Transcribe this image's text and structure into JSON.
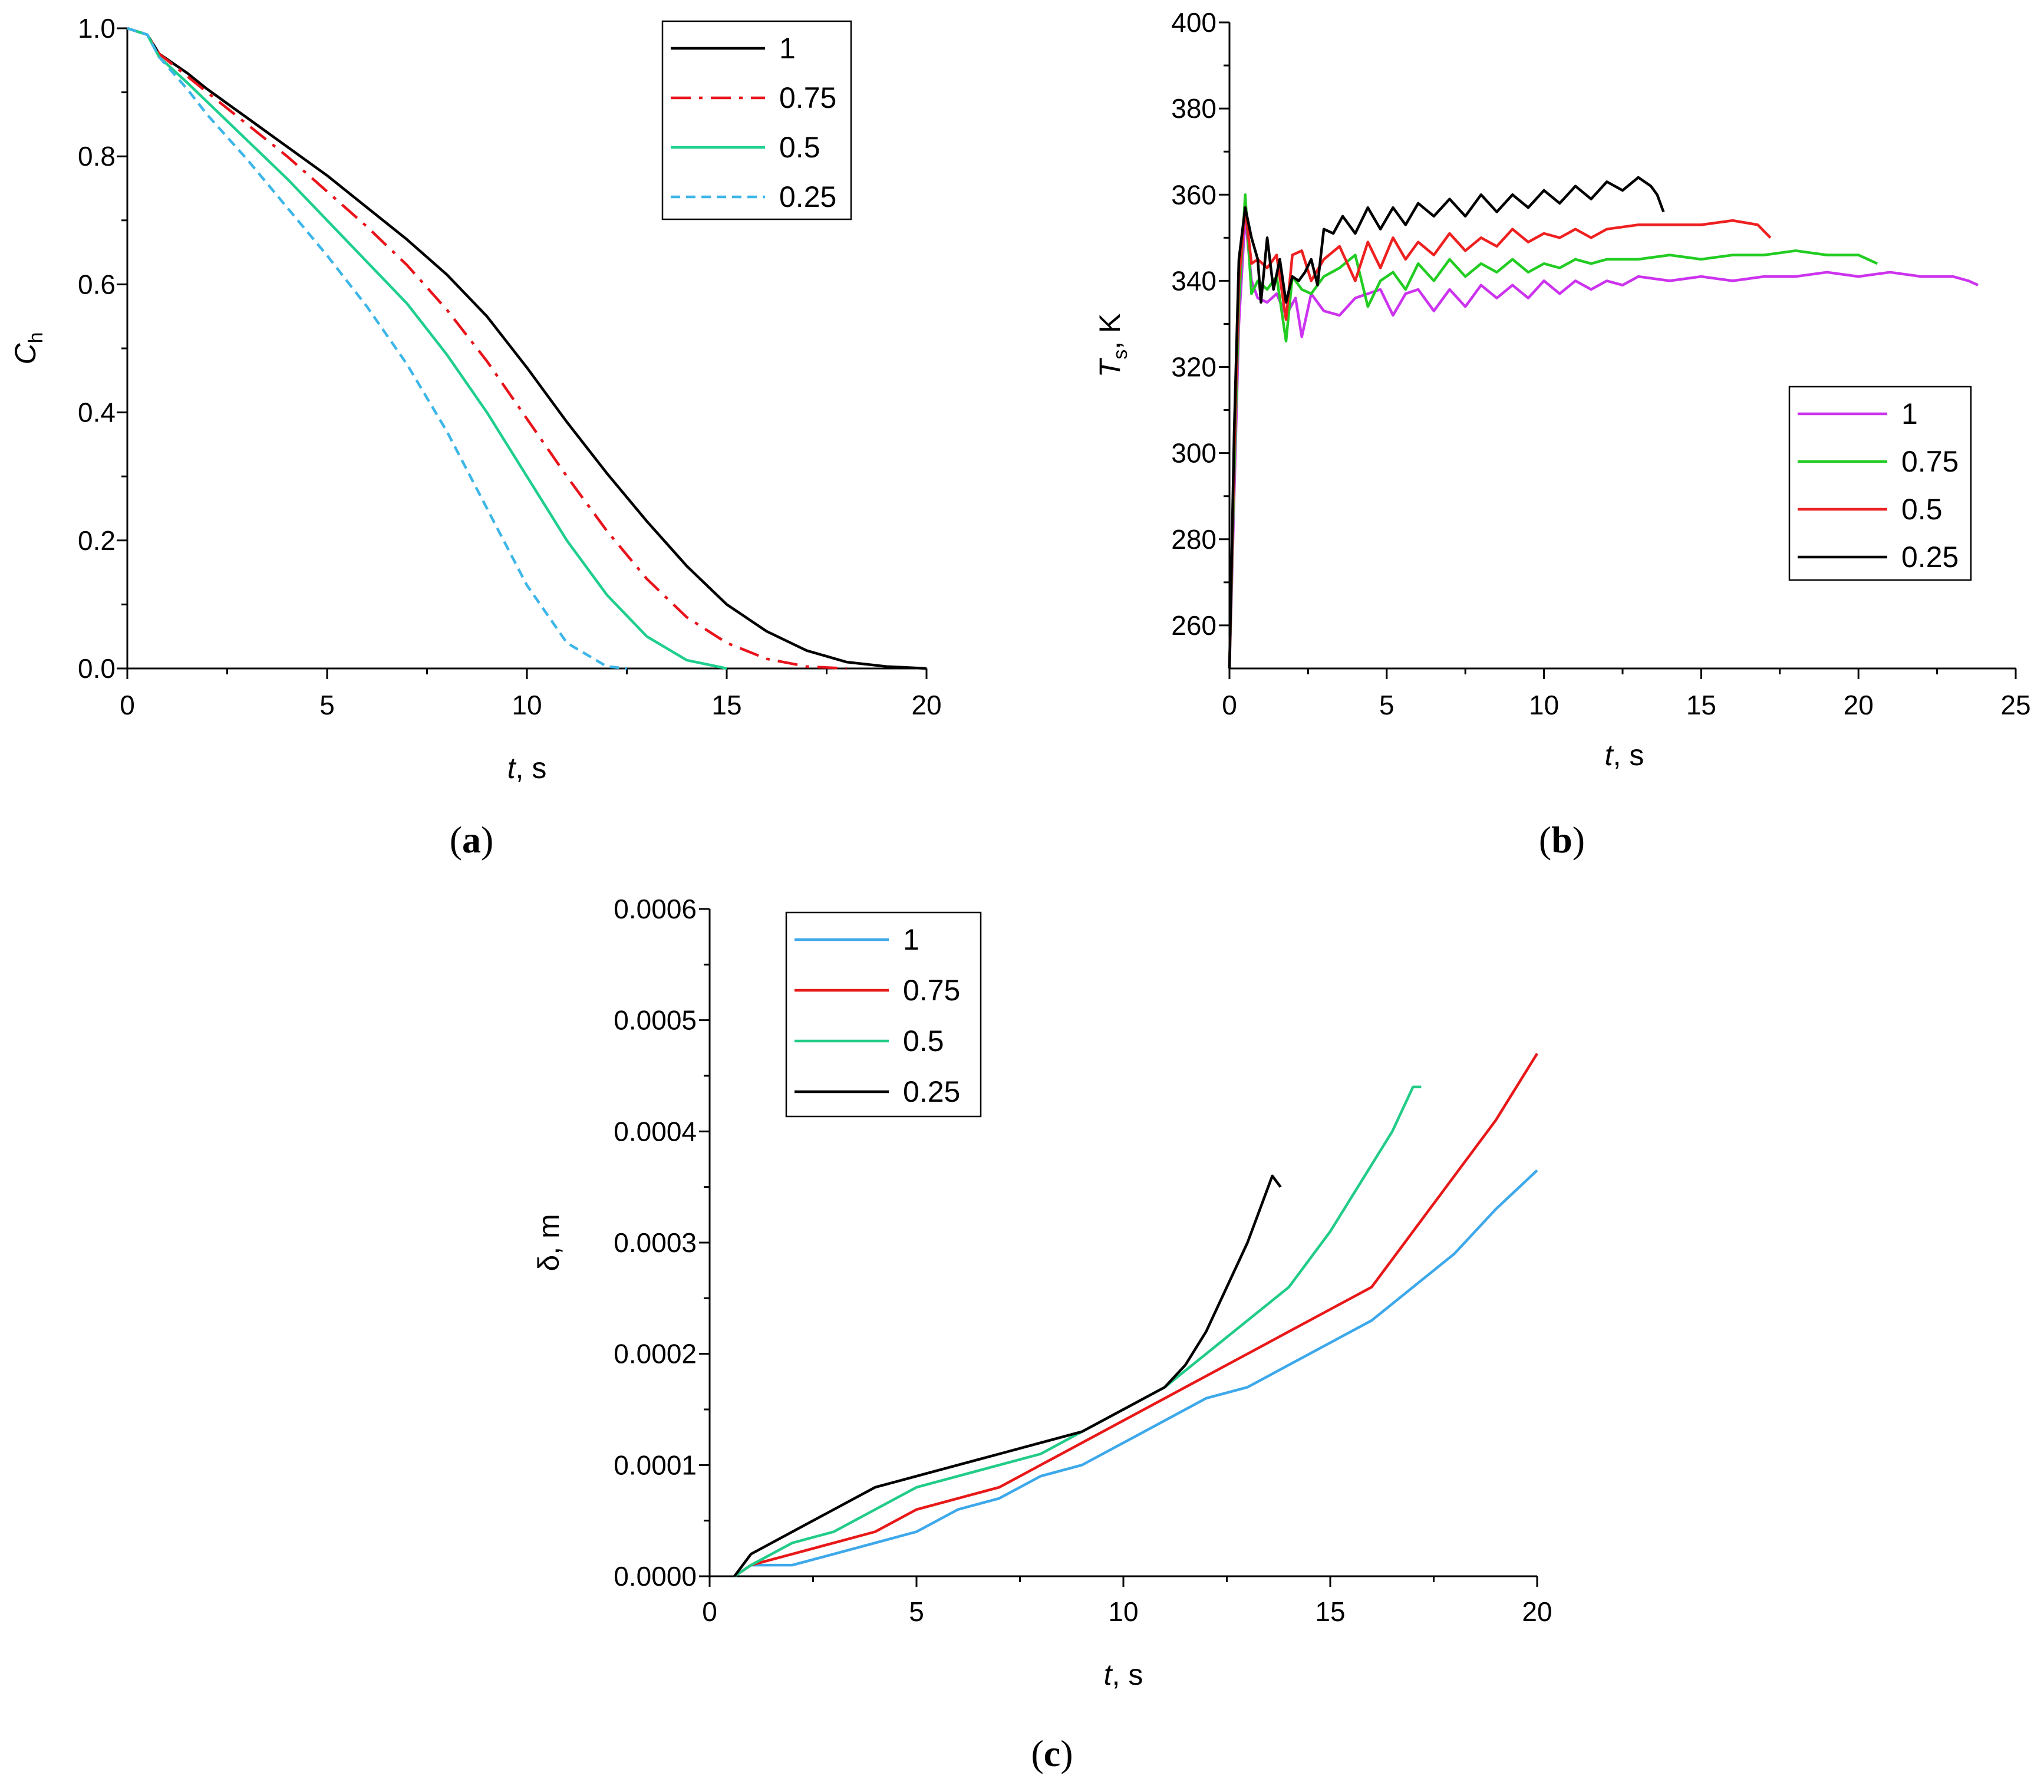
{
  "chart_data": [
    {
      "panel": "(a)",
      "panel_letter": "a",
      "type": "line",
      "xlabel_italic": "t",
      "xlabel_rest": ", s",
      "ylabel_main": "C",
      "ylabel_sub": "h",
      "xlim": [
        0,
        20
      ],
      "ylim": [
        0,
        1
      ],
      "xticks": [
        0,
        5,
        10,
        15,
        20
      ],
      "xticklabels": [
        "0",
        "5",
        "10",
        "15",
        "20"
      ],
      "yticks": [
        0,
        0.2,
        0.4,
        0.6,
        0.8,
        1.0
      ],
      "yticklabels": [
        "0.0",
        "0.2",
        "0.4",
        "0.6",
        "0.8",
        "1.0"
      ],
      "legend_position": "top-right",
      "series": [
        {
          "name": "1",
          "color": "#000000",
          "dash": "solid",
          "x": [
            0,
            0.5,
            0.8,
            1.5,
            2,
            3,
            4,
            5,
            6,
            7,
            8,
            9,
            10,
            11,
            12,
            13,
            14,
            15,
            16,
            17,
            18,
            19,
            20
          ],
          "y": [
            1.0,
            0.99,
            0.96,
            0.93,
            0.905,
            0.86,
            0.815,
            0.77,
            0.72,
            0.67,
            0.615,
            0.55,
            0.47,
            0.385,
            0.305,
            0.23,
            0.16,
            0.1,
            0.058,
            0.028,
            0.01,
            0.003,
            0.0
          ]
        },
        {
          "name": "0.75",
          "color": "#e8131b",
          "dash": "dashdot",
          "x": [
            0,
            0.5,
            0.8,
            1.5,
            2,
            3,
            4,
            5,
            6,
            7,
            8,
            9,
            10,
            11,
            12,
            13,
            14,
            15,
            16,
            17,
            18
          ],
          "y": [
            1.0,
            0.99,
            0.96,
            0.925,
            0.9,
            0.85,
            0.8,
            0.745,
            0.69,
            0.63,
            0.56,
            0.48,
            0.39,
            0.3,
            0.215,
            0.14,
            0.08,
            0.04,
            0.015,
            0.003,
            0.0
          ]
        },
        {
          "name": "0.5",
          "color": "#1fcf8e",
          "dash": "solid",
          "x": [
            0,
            0.5,
            0.8,
            1.5,
            2,
            3,
            4,
            5,
            6,
            7,
            8,
            9,
            10,
            11,
            12,
            13,
            14,
            15
          ],
          "y": [
            1.0,
            0.99,
            0.955,
            0.915,
            0.885,
            0.825,
            0.765,
            0.7,
            0.635,
            0.57,
            0.49,
            0.4,
            0.3,
            0.2,
            0.115,
            0.05,
            0.013,
            0.0
          ]
        },
        {
          "name": "0.25",
          "color": "#3db6e8",
          "dash": "dashed",
          "x": [
            0,
            0.5,
            0.8,
            1.5,
            2,
            3,
            4,
            5,
            6,
            7,
            8,
            9,
            10,
            11,
            12,
            12.5
          ],
          "y": [
            1.0,
            0.99,
            0.955,
            0.905,
            0.865,
            0.795,
            0.72,
            0.645,
            0.565,
            0.475,
            0.37,
            0.25,
            0.13,
            0.04,
            0.003,
            0.0
          ]
        }
      ]
    },
    {
      "panel": "(b)",
      "panel_letter": "b",
      "type": "line",
      "xlabel_italic": "t",
      "xlabel_rest": ", s",
      "ylabel_main": "T",
      "ylabel_sub": "s",
      "ylabel_rest": ", K",
      "xlim": [
        0,
        25
      ],
      "ylim": [
        250,
        400
      ],
      "xticks": [
        0,
        5,
        10,
        15,
        20,
        25
      ],
      "xticklabels": [
        "0",
        "5",
        "10",
        "15",
        "20",
        "25"
      ],
      "yticks": [
        260,
        280,
        300,
        320,
        340,
        360,
        380,
        400
      ],
      "yticklabels": [
        "260",
        "280",
        "300",
        "320",
        "340",
        "360",
        "380",
        "400"
      ],
      "legend_position": "lower-right",
      "series": [
        {
          "name": "1",
          "color": "#cc33ee",
          "x": [
            0,
            0.15,
            0.3,
            0.5,
            0.7,
            0.9,
            1.2,
            1.5,
            1.8,
            2.1,
            2.3,
            2.6,
            3.0,
            3.5,
            4.0,
            4.4,
            4.8,
            5.2,
            5.6,
            6.0,
            6.5,
            7.0,
            7.5,
            8.0,
            8.5,
            9.0,
            9.5,
            10.0,
            10.5,
            11,
            11.5,
            12,
            12.5,
            13,
            14,
            15,
            16,
            17,
            18,
            19,
            20,
            21,
            22,
            23,
            23.5,
            23.8
          ],
          "y": [
            250,
            290,
            330,
            355,
            340,
            336,
            335,
            337,
            332,
            336,
            327,
            337,
            333,
            332,
            336,
            337,
            338,
            332,
            337,
            338,
            333,
            338,
            334,
            339,
            336,
            339,
            336,
            340,
            337,
            340,
            338,
            340,
            339,
            341,
            340,
            341,
            340,
            341,
            341,
            342,
            341,
            342,
            341,
            341,
            340,
            339
          ]
        },
        {
          "name": "0.75",
          "color": "#22cc22",
          "x": [
            0,
            0.15,
            0.3,
            0.5,
            0.7,
            0.9,
            1.2,
            1.5,
            1.8,
            2.0,
            2.3,
            2.6,
            3.0,
            3.5,
            4.0,
            4.4,
            4.8,
            5.2,
            5.6,
            6.0,
            6.5,
            7.0,
            7.5,
            8.0,
            8.5,
            9.0,
            9.5,
            10,
            10.5,
            11,
            11.5,
            12,
            13,
            14,
            15,
            16,
            17,
            18,
            19,
            20,
            20.6
          ],
          "y": [
            250,
            295,
            335,
            360,
            337,
            340,
            338,
            341,
            326,
            341,
            338,
            337,
            341,
            343,
            346,
            334,
            340,
            342,
            338,
            344,
            340,
            345,
            341,
            344,
            342,
            345,
            342,
            344,
            343,
            345,
            344,
            345,
            345,
            346,
            345,
            346,
            346,
            347,
            346,
            346,
            344
          ]
        },
        {
          "name": "0.5",
          "color": "#ee2020",
          "x": [
            0,
            0.15,
            0.3,
            0.5,
            0.7,
            0.9,
            1.2,
            1.5,
            1.8,
            2.0,
            2.3,
            2.6,
            3.0,
            3.5,
            4.0,
            4.4,
            4.8,
            5.2,
            5.6,
            6.0,
            6.5,
            7.0,
            7.5,
            8.0,
            8.5,
            9.0,
            9.5,
            10,
            10.5,
            11,
            11.5,
            12,
            13,
            14,
            15,
            16,
            16.8,
            17.2
          ],
          "y": [
            250,
            300,
            340,
            357,
            344,
            345,
            343,
            346,
            331,
            346,
            347,
            340,
            345,
            348,
            340,
            349,
            343,
            350,
            345,
            349,
            346,
            351,
            347,
            350,
            348,
            352,
            349,
            351,
            350,
            352,
            350,
            352,
            353,
            353,
            353,
            354,
            353,
            350
          ]
        },
        {
          "name": "0.25",
          "color": "#000000",
          "x": [
            0,
            0.15,
            0.3,
            0.5,
            0.7,
            0.9,
            1.0,
            1.2,
            1.4,
            1.6,
            1.8,
            2.0,
            2.2,
            2.4,
            2.6,
            2.8,
            3.0,
            3.3,
            3.6,
            4.0,
            4.4,
            4.8,
            5.2,
            5.6,
            6.0,
            6.5,
            7.0,
            7.5,
            8.0,
            8.5,
            9.0,
            9.5,
            10,
            10.5,
            11,
            11.5,
            12,
            12.5,
            13,
            13.4,
            13.6,
            13.8
          ],
          "y": [
            250,
            305,
            345,
            357,
            350,
            345,
            335,
            350,
            338,
            345,
            335,
            341,
            340,
            342,
            345,
            339,
            352,
            351,
            355,
            351,
            357,
            352,
            357,
            353,
            358,
            355,
            359,
            355,
            360,
            356,
            360,
            357,
            361,
            358,
            362,
            359,
            363,
            361,
            364,
            362,
            360,
            356
          ]
        }
      ]
    },
    {
      "panel": "(c)",
      "panel_letter": "c",
      "type": "line",
      "xlabel_italic": "t",
      "xlabel_rest": ", s",
      "ylabel": "δ, m",
      "xlim": [
        0,
        20
      ],
      "ylim": [
        0,
        0.0006
      ],
      "xticks": [
        0,
        5,
        10,
        15,
        20
      ],
      "xticklabels": [
        "0",
        "5",
        "10",
        "15",
        "20"
      ],
      "yticks": [
        0,
        0.0001,
        0.0002,
        0.0003,
        0.0004,
        0.0005,
        0.0006
      ],
      "yticklabels": [
        "0.0000",
        "0.0001",
        "0.0002",
        "0.0003",
        "0.0004",
        "0.0005",
        "0.0006"
      ],
      "legend_position": "top-left",
      "series": [
        {
          "name": "1",
          "color": "#3da8ea",
          "x": [
            0.6,
            1.0,
            2.0,
            3.0,
            4.0,
            5.0,
            6.0,
            7.0,
            8.0,
            9.0,
            10.0,
            11.0,
            12.0,
            13.0,
            14.0,
            15.0,
            16.0,
            17.0,
            18.0,
            19.0,
            20.0
          ],
          "y": [
            0.0,
            1e-05,
            1e-05,
            2e-05,
            3e-05,
            4e-05,
            6e-05,
            7e-05,
            9e-05,
            0.0001,
            0.00012,
            0.00014,
            0.00016,
            0.00017,
            0.00019,
            0.00021,
            0.00023,
            0.00026,
            0.00029,
            0.00033,
            0.000365
          ]
        },
        {
          "name": "0.75",
          "color": "#e81818",
          "x": [
            0.6,
            1.0,
            2.0,
            3.0,
            4.0,
            5.0,
            6.0,
            7.0,
            8.0,
            9.0,
            10.0,
            11.0,
            12.0,
            13.0,
            14.0,
            15.0,
            16.0,
            17.0,
            18.0,
            19.0,
            20.0
          ],
          "y": [
            0.0,
            1e-05,
            2e-05,
            3e-05,
            4e-05,
            6e-05,
            7e-05,
            8e-05,
            0.0001,
            0.00012,
            0.00014,
            0.00016,
            0.00018,
            0.0002,
            0.00022,
            0.00024,
            0.00026,
            0.00031,
            0.00036,
            0.00041,
            0.00047
          ]
        },
        {
          "name": "0.5",
          "color": "#22cc88",
          "x": [
            0.6,
            1.0,
            2.0,
            3.0,
            4.0,
            5.0,
            6.0,
            7.0,
            8.0,
            9.0,
            10.0,
            11.0,
            12.0,
            13.0,
            14.0,
            15.0,
            16.0,
            16.5,
            17.0,
            17.2
          ],
          "y": [
            0.0,
            1e-05,
            3e-05,
            4e-05,
            6e-05,
            8e-05,
            9e-05,
            0.0001,
            0.00011,
            0.00013,
            0.00015,
            0.00017,
            0.0002,
            0.00023,
            0.00026,
            0.00031,
            0.00037,
            0.0004,
            0.00044,
            0.00044
          ]
        },
        {
          "name": "0.25",
          "color": "#000000",
          "x": [
            0.6,
            1.0,
            2.0,
            3.0,
            4.0,
            5.0,
            6.0,
            7.0,
            8.0,
            9.0,
            10.0,
            11.0,
            11.5,
            12.0,
            12.5,
            13.0,
            13.3,
            13.6,
            13.8
          ],
          "y": [
            0.0,
            2e-05,
            4e-05,
            6e-05,
            8e-05,
            9e-05,
            0.0001,
            0.00011,
            0.00012,
            0.00013,
            0.00015,
            0.00017,
            0.00019,
            0.00022,
            0.00026,
            0.0003,
            0.00033,
            0.00036,
            0.00035
          ]
        }
      ]
    }
  ]
}
